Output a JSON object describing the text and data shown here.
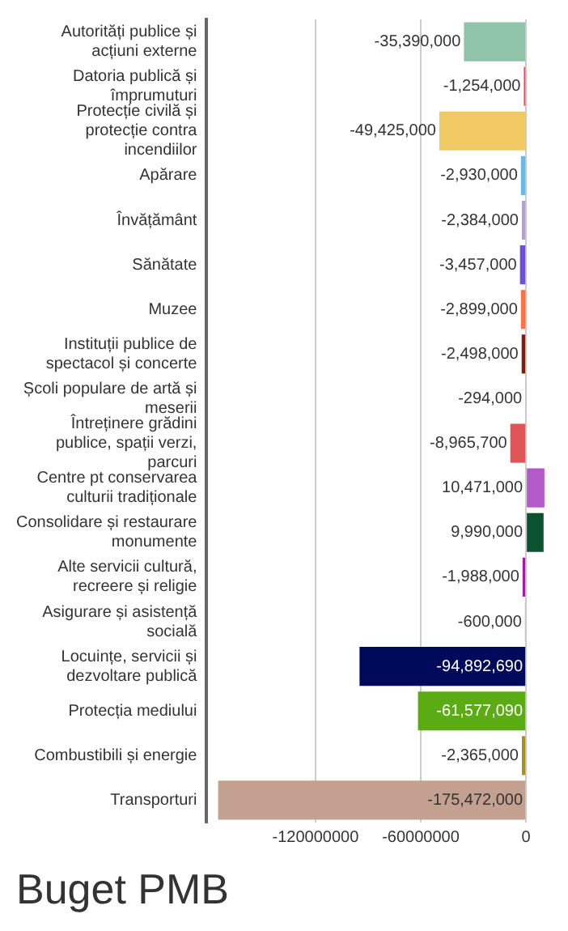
{
  "chart_data": {
    "type": "bar",
    "orientation": "horizontal",
    "title": "Buget PMB",
    "categories": [
      "Autorități publice și acțiuni externe",
      "Datoria publică și împrumuturi",
      "Protecție civilă și protecție contra incendiilor",
      "Apărare",
      "Învățământ",
      "Sănătate",
      "Muzee",
      "Instituții publice de spectacol și concerte",
      "Școli populare de artă și meserii",
      "Întreținere grădini publice, spații verzi, parcuri",
      "Centre pt conservarea culturii tradiționale",
      "Consolidare și restaurare monumente",
      "Alte servicii cultură, recreere și religie",
      "Asigurare și asistență socială",
      "Locuințe, servicii și dezvoltare publică",
      "Protecția mediului",
      "Combustibili și energie",
      "Transporturi"
    ],
    "values": [
      -35390000,
      -1254000,
      -49425000,
      -2930000,
      -2384000,
      -3457000,
      -2899000,
      -2498000,
      -294000,
      -8965700,
      10471000,
      9990000,
      -1988000,
      -600000,
      -94892690,
      -61577090,
      -2365000,
      -175472000
    ],
    "value_labels": [
      "-35,390,000",
      "-1,254,000",
      "-49,425,000",
      "-2,930,000",
      "-2,384,000",
      "-3,457,000",
      "-2,899,000",
      "-2,498,000",
      "-294,000",
      "-8,965,700",
      "10,471,000",
      "9,990,000",
      "-1,988,000",
      "-600,000",
      "-94,892,690",
      "-61,577,090",
      "-2,365,000",
      "-175,472,000"
    ],
    "colors": [
      "#8fc4a8",
      "#e84a5f",
      "#f0c864",
      "#6cb8e6",
      "#b39ddb",
      "#6a4fd8",
      "#ff7043",
      "#7b1f0e",
      "#9ed5c0",
      "#e05555",
      "#b45ac8",
      "#0a5230",
      "#a020a0",
      "#5fb4c0",
      "#000a5a",
      "#5aab14",
      "#a89020",
      "#c4a090"
    ],
    "xlim": [
      -182000000,
      11000000
    ],
    "xticks": [
      -120000000,
      -60000000,
      0
    ],
    "grid": "x"
  }
}
